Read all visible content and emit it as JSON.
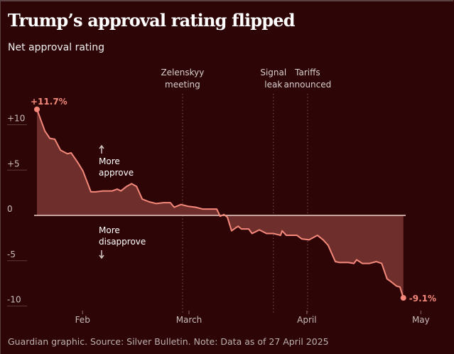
{
  "title": "Trump’s approval rating flipped",
  "subtitle": "Net approval rating",
  "footer": "Guardian graphic. Source: Silver Bulletin. Note: Data as of 27 April 2025",
  "colors": {
    "background": "#2e0507",
    "line": "#f4887a",
    "fill": "#6e2e2c",
    "baseline": "#d9b8b2"
  },
  "chart_data": {
    "type": "area",
    "title": "Trump’s approval rating flipped",
    "ylabel": "Net approval rating",
    "x_unit": "days since 20 Jan 2025",
    "ylim": [
      -10.5,
      12
    ],
    "xlim": [
      0,
      100
    ],
    "y_ticks": [
      {
        "value": 10,
        "label": "+10"
      },
      {
        "value": 5,
        "label": "+5"
      },
      {
        "value": 0,
        "label": "0"
      },
      {
        "value": -5,
        "label": "-5"
      },
      {
        "value": -10,
        "label": "-10"
      }
    ],
    "x_ticks": [
      {
        "value": 12,
        "label": "Feb"
      },
      {
        "value": 40,
        "label": "March"
      },
      {
        "value": 71,
        "label": "April"
      },
      {
        "value": 101,
        "label": "May"
      }
    ],
    "series": [
      {
        "name": "Net approval",
        "x": [
          0,
          2.1,
          3.4,
          4.7,
          6.2,
          8,
          9,
          10.8,
          12.1,
          14.2,
          15.5,
          17.4,
          19.8,
          21.1,
          22.1,
          23.6,
          24.9,
          26.2,
          27.7,
          29.5,
          31.4,
          33.3,
          35.1,
          36.1,
          37.9,
          39.8,
          41.7,
          43.6,
          45.4,
          47.3,
          48.2,
          49.2,
          50.1,
          51.2,
          52.9,
          53.8,
          55.7,
          56.6,
          58.5,
          60.4,
          62.2,
          64.1,
          64.5,
          65.6,
          68.4,
          69.7,
          71.6,
          73.8,
          75.3,
          76.6,
          78.5,
          79.6,
          81.9,
          83.4,
          84.1,
          85.6,
          87.5,
          89.3,
          90.7,
          92.1,
          93.1,
          94.6,
          95.5,
          96.4
        ],
        "values": [
          11.7,
          9.3,
          8.5,
          8.4,
          7.2,
          6.8,
          6.9,
          5.8,
          4.9,
          2.6,
          2.6,
          2.7,
          2.7,
          2.9,
          2.7,
          3.2,
          3.5,
          3.2,
          1.8,
          1.5,
          1.3,
          1.4,
          1.4,
          0.9,
          1.2,
          1.0,
          0.9,
          0.7,
          0.7,
          0.7,
          -0.1,
          0.1,
          -0.2,
          -1.7,
          -1.2,
          -1.5,
          -1.5,
          -2.0,
          -1.6,
          -2.0,
          -2.0,
          -2.2,
          -1.7,
          -2.2,
          -2.2,
          -2.6,
          -2.7,
          -2.2,
          -2.7,
          -3.3,
          -5.1,
          -5.2,
          -5.2,
          -5.3,
          -4.9,
          -5.3,
          -5.3,
          -5.1,
          -5.3,
          -7.0,
          -7.3,
          -7.8,
          -7.9,
          -9.1
        ]
      }
    ],
    "start_label": "+11.7%",
    "end_label": "-9.1%",
    "events": [
      {
        "x": 38.3,
        "lines": [
          "Zelenskyy",
          "meeting"
        ]
      },
      {
        "x": 62.2,
        "lines": [
          "Signal",
          "leak"
        ]
      },
      {
        "x": 71.2,
        "lines": [
          "Tariffs",
          "announced"
        ]
      }
    ],
    "annotations": {
      "up": [
        "More",
        "approve"
      ],
      "down": [
        "More",
        "disapprove"
      ],
      "up_arrow": "arrow-up-icon",
      "down_arrow": "arrow-down-icon"
    }
  }
}
